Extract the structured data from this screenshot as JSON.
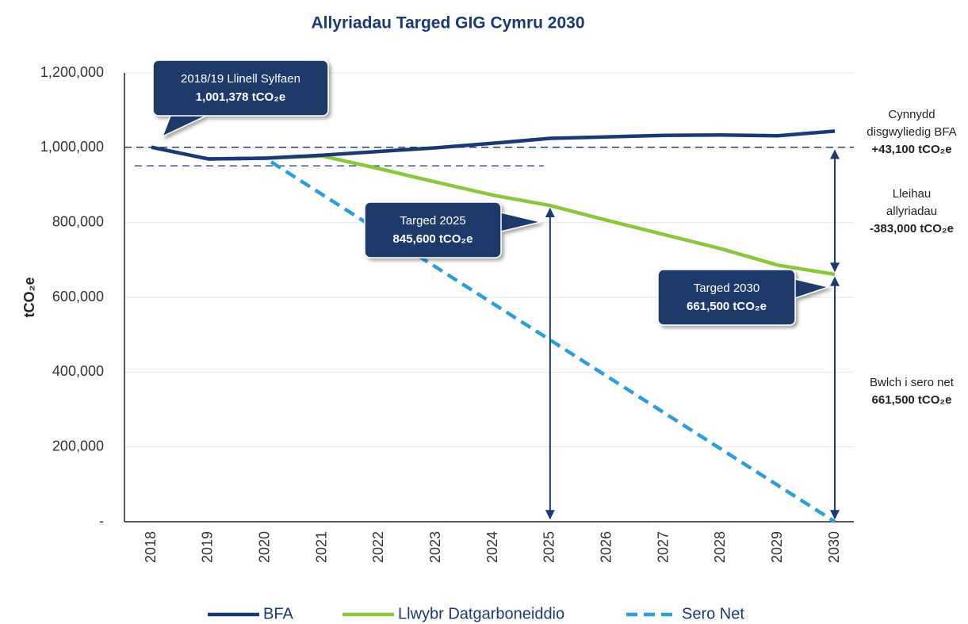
{
  "chart_data": {
    "type": "line",
    "title": "Allyriadau Targed GIG Cymru 2030",
    "y_label": "tCO₂e",
    "categories": [
      "2018",
      "2019",
      "2020",
      "2021",
      "2022",
      "2023",
      "2024",
      "2025",
      "2026",
      "2027",
      "2028",
      "2029",
      "2030"
    ],
    "series": [
      {
        "name": "BFA",
        "color": "#1b3a75",
        "dash": false,
        "values": [
          1001378,
          970000,
          972000,
          980000,
          990000,
          1000000,
          1012000,
          1025000,
          1029000,
          1033000,
          1034000,
          1032000,
          1044478
        ]
      },
      {
        "name": "Llwybr Datgarboneiddio",
        "color": "#8cc63f",
        "dash": false,
        "values": [
          1001378,
          970000,
          972000,
          978000,
          944000,
          908000,
          873000,
          845600,
          806000,
          768000,
          730000,
          686000,
          661500
        ]
      },
      {
        "name": "Sero Net",
        "color": "#2b9fd9",
        "dash": true,
        "values": [
          1001378,
          970000,
          972000,
          874800,
          777600,
          680400,
          583200,
          486000,
          388800,
          291600,
          194400,
          97200,
          0
        ]
      }
    ],
    "ylim": [
      0,
      1200000
    ],
    "yticks": [
      {
        "value": 0,
        "label": "-"
      },
      {
        "value": 200000,
        "label": "200,000"
      },
      {
        "value": 400000,
        "label": "400,000"
      },
      {
        "value": 600000,
        "label": "600,000"
      },
      {
        "value": 800000,
        "label": "800,000"
      },
      {
        "value": 1000000,
        "label": "1,000,000"
      },
      {
        "value": 1200000,
        "label": "1,200,000"
      }
    ],
    "grid": true,
    "legend": "bottom",
    "callouts": [
      {
        "lines": [
          "2018/19 Llinell Sylfaen",
          "1,001,378 tCO₂e"
        ],
        "value": 1001378
      },
      {
        "lines": [
          "Targed 2025",
          "845,600 tCO₂e"
        ],
        "value": 845600
      },
      {
        "lines": [
          "Targed 2030",
          "661,500 tCO₂e"
        ],
        "value": 661500
      }
    ],
    "notes": [
      {
        "lines": [
          "Cynnydd",
          "disgwyliedig BFA",
          "+43,100 tCO₂e"
        ],
        "value": 43100
      },
      {
        "lines": [
          "Lleihau",
          "allyriadau",
          "-383,000 tCO₂e"
        ],
        "value": -383000
      },
      {
        "lines": [
          "Bwlch i sero net",
          "661,500 tCO₂e"
        ],
        "value": 661500
      }
    ]
  }
}
